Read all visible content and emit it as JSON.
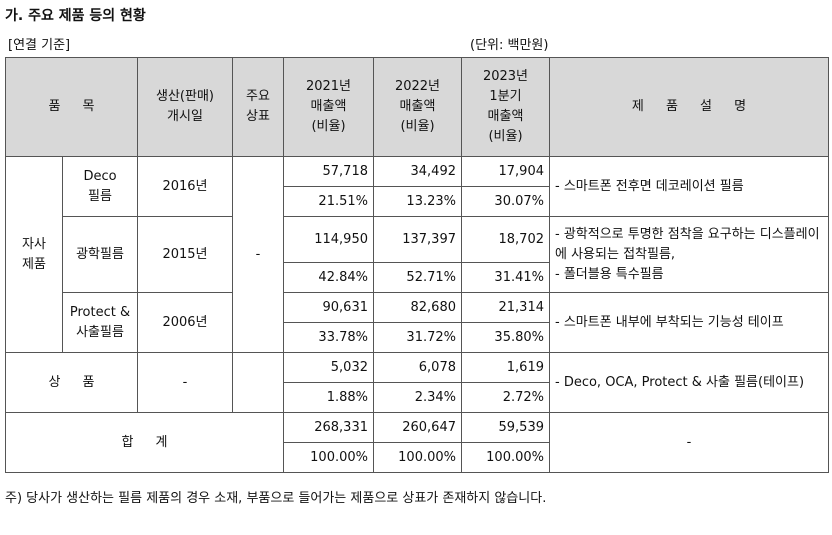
{
  "title": "가. 주요 제품 등의 현황",
  "basis": "[연결 기준]",
  "unit": "(단위: 백만원)",
  "table": {
    "header": [
      "품 목",
      "생산(판매)\n개시일",
      "주요\n상표",
      "2021년\n매출액\n(비율)",
      "2022년\n매출액\n(비율)",
      "2023년\n1분기\n매출액\n(비율)",
      "제 품 설 명"
    ],
    "self_group": "자사\n제품",
    "brand": "-",
    "products": [
      {
        "name": "Deco\n필름",
        "start": "2016년",
        "amounts": [
          "57,718",
          "34,492",
          "17,904"
        ],
        "ratios": [
          "21.51%",
          "13.23%",
          "30.07%"
        ],
        "description": "- 스마트폰 전후면 데코레이션 필름"
      },
      {
        "name": "광학필름",
        "start": "2015년",
        "amounts": [
          "114,950",
          "137,397",
          "18,702"
        ],
        "ratios": [
          "42.84%",
          "52.71%",
          "31.41%"
        ],
        "description": "- 광학적으로 투명한 점착을 요구하는 디스플레이에 사용되는 접착필름,\n- 폴더블용 특수필름"
      },
      {
        "name": "Protect &\n사출필름",
        "start": "2006년",
        "amounts": [
          "90,631",
          "82,680",
          "21,314"
        ],
        "ratios": [
          "33.78%",
          "31.72%",
          "35.80%"
        ],
        "description": "- 스마트폰 내부에 부착되는 기능성 테이프"
      }
    ],
    "goods": {
      "name": "상 품",
      "start": "-",
      "amounts": [
        "5,032",
        "6,078",
        "1,619"
      ],
      "ratios": [
        "1.88%",
        "2.34%",
        "2.72%"
      ],
      "description": "- Deco, OCA, Protect & 사출 필름(테이프)"
    },
    "total": {
      "name": "합 계",
      "amounts": [
        "268,331",
        "260,647",
        "59,539"
      ],
      "ratios": [
        "100.00%",
        "100.00%",
        "100.00%"
      ],
      "description": "-"
    }
  },
  "footnote": "주) 당사가 생산하는 필름 제품의 경우 소재, 부품으로 들어가는 제품으로 상표가 존재하지 않습니다."
}
